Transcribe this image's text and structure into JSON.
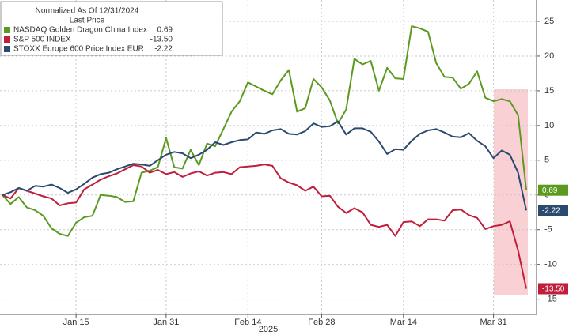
{
  "chart_data": {
    "type": "line",
    "legend_title": "Normalized As Of 12/31/2024",
    "legend_subtitle": "Last Price",
    "x_label": "2025",
    "categories": [
      null,
      null,
      null,
      null,
      null,
      null,
      null,
      null,
      null,
      "Jan 15",
      null,
      null,
      null,
      null,
      null,
      null,
      null,
      null,
      null,
      null,
      "Jan 31",
      null,
      null,
      null,
      null,
      null,
      null,
      null,
      null,
      null,
      "Feb 14",
      null,
      null,
      null,
      null,
      null,
      null,
      null,
      null,
      "Feb 28",
      null,
      null,
      null,
      null,
      null,
      null,
      null,
      null,
      null,
      "Mar 14",
      null,
      null,
      null,
      null,
      null,
      null,
      null,
      null,
      null,
      null,
      "Mar 31",
      null,
      null,
      null,
      null
    ],
    "series": [
      {
        "name": "NASDAQ Golden Dragon China Index",
        "color": "#5b9a1f",
        "values": [
          0,
          -1.3,
          -0.3,
          -1.8,
          -2.2,
          -3,
          -4.8,
          -5.6,
          -5.9,
          -4,
          -3.2,
          -3,
          0,
          -0.1,
          -0.3,
          -1,
          -0.9,
          3.2,
          3.5,
          4,
          8.2,
          4,
          3.8,
          6.5,
          4.3,
          7.4,
          7,
          9.5,
          12,
          13.5,
          16.2,
          15.6,
          15,
          14.5,
          16.5,
          18,
          12,
          12.5,
          16.7,
          15.5,
          13.6,
          10.3,
          12.3,
          19.6,
          18.8,
          19.3,
          15,
          18.3,
          16.8,
          16.7,
          24.3,
          24,
          23.5,
          19,
          17,
          16.9,
          15.3,
          16,
          17.8,
          14,
          13.5,
          13.8,
          13.5,
          11.5,
          0.69
        ]
      },
      {
        "name": "S&P 500 INDEX",
        "color": "#c01f3c",
        "values": [
          0,
          -0.5,
          1,
          0.6,
          0.2,
          -0.2,
          -0.5,
          -1.5,
          -1.2,
          -1.1,
          0.8,
          1.5,
          2.2,
          2.7,
          3.1,
          3.7,
          4.3,
          4.1,
          3.2,
          3.6,
          3,
          3.3,
          2.6,
          3.1,
          3.4,
          2.8,
          3.2,
          3.3,
          3,
          4,
          4.1,
          4.2,
          4.4,
          4.2,
          2.4,
          1.8,
          1.4,
          0.6,
          1.2,
          -0.2,
          -0.1,
          -1.7,
          -2.6,
          -1.9,
          -2.5,
          -4.3,
          -4.6,
          -4.3,
          -5.9,
          -3.9,
          -3.8,
          -4.5,
          -3.5,
          -3.5,
          -3.7,
          -2.2,
          -2.1,
          -2.9,
          -3.3,
          -4.9,
          -4.5,
          -4.3,
          -3.8,
          -8,
          -13.5
        ],
        "value_labels": [
          null,
          null,
          null,
          null,
          null,
          null,
          null,
          null,
          null,
          null,
          null,
          null,
          null,
          null,
          null,
          null,
          null,
          null,
          null,
          null,
          null,
          null,
          null,
          null,
          null,
          null,
          null,
          null,
          null,
          null,
          null,
          null,
          null,
          null,
          null,
          null,
          null,
          null,
          null,
          null,
          null,
          null,
          null,
          null,
          null,
          null,
          null,
          null,
          null,
          null,
          null,
          null,
          null,
          null,
          null,
          null,
          null,
          null,
          null,
          null,
          null,
          null,
          null,
          null,
          "-13.50"
        ]
      },
      {
        "name": "STOXX Europe 600 Price Index EUR",
        "color": "#2a4a70",
        "values": [
          0,
          0.4,
          1,
          0.6,
          1.3,
          1.2,
          1.5,
          1,
          0.3,
          0.8,
          1.6,
          2.5,
          3,
          3.2,
          3.7,
          4.1,
          4.5,
          4.4,
          4.2,
          5,
          5.8,
          6.2,
          6,
          5.3,
          5.8,
          6.5,
          7.6,
          7.2,
          7.6,
          7.9,
          8,
          9,
          8.8,
          9.3,
          9.5,
          8.8,
          8.7,
          9.2,
          10.3,
          9.8,
          9.9,
          10.6,
          8.7,
          9.6,
          9.6,
          9.1,
          7.7,
          5.9,
          6.6,
          6.5,
          7.8,
          8.8,
          9.3,
          9.5,
          9,
          8.4,
          8.3,
          8.9,
          7.8,
          7,
          5.3,
          6.4,
          5.8,
          3.2,
          -2.22
        ]
      }
    ],
    "ylim": [
      -17.2,
      27.5
    ],
    "yticks": [
      -15,
      -10,
      -5,
      0,
      5,
      10,
      15,
      20,
      25
    ],
    "grid": true
  }
}
